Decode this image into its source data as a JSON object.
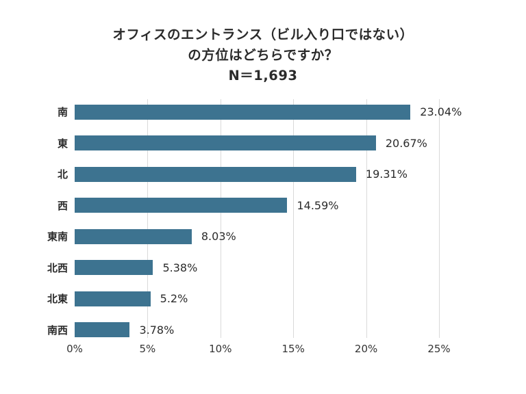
{
  "title": {
    "line1": "オフィスのエントランス（ビル入り口ではない）",
    "line2": "の方位はどちらですか？",
    "sample": "N＝1,693"
  },
  "chart_data": {
    "type": "bar",
    "orientation": "horizontal",
    "title": "オフィスのエントランス（ビル入り口ではない）の方位はどちらですか？",
    "subtitle": "N＝1,693",
    "categories": [
      "南",
      "東",
      "北",
      "西",
      "東南",
      "北西",
      "北東",
      "南西"
    ],
    "values": [
      23.04,
      20.67,
      19.31,
      14.59,
      8.03,
      5.38,
      5.2,
      3.78
    ],
    "value_labels": [
      "23.04%",
      "20.67%",
      "19.31%",
      "14.59%",
      "8.03%",
      "5.2%",
      "3.78%"
    ],
    "value_labels_full": [
      "23.04%",
      "20.67%",
      "19.31%",
      "14.59%",
      "8.03%",
      "5.38%",
      "5.2%",
      "3.78%"
    ],
    "x_ticks": [
      "0%",
      "5%",
      "10%",
      "15%",
      "20%",
      "25%"
    ],
    "x_tick_values": [
      0,
      5,
      10,
      15,
      20,
      25
    ],
    "xlim": [
      0,
      25
    ],
    "grid": true,
    "legend": "none",
    "bar_color": "#3d7390",
    "grid_color": "#d9d9d9",
    "text_color": "#2b2b2b"
  }
}
